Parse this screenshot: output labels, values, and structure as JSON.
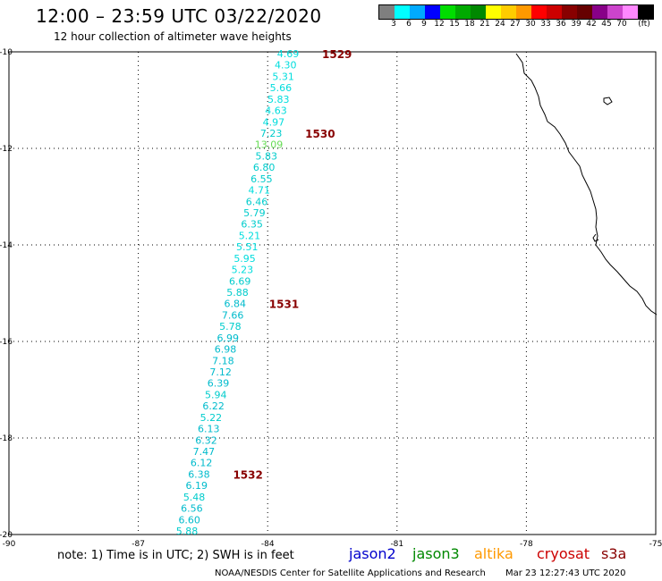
{
  "header": {
    "title": "12:00 – 23:59 UTC 03/22/2020",
    "subtitle": "12 hour collection of altimeter wave heights"
  },
  "colorbar": {
    "colors": [
      "#7f7f7f",
      "#00ffff",
      "#00aaff",
      "#0000ff",
      "#00dd00",
      "#00aa00",
      "#008800",
      "#ffff00",
      "#ffcc00",
      "#ff9900",
      "#ff0000",
      "#cc0000",
      "#880000",
      "#660000",
      "#880088",
      "#cc44cc",
      "#ff88ff",
      "#000000"
    ],
    "labels": [
      "3",
      "6",
      "9",
      "12",
      "15",
      "18",
      "21",
      "24",
      "27",
      "30",
      "33",
      "36",
      "39",
      "42",
      "45",
      "70",
      "(ft)"
    ]
  },
  "map": {
    "lat_ticks": [
      "-10",
      "-12",
      "-14",
      "-16",
      "-18",
      "-20"
    ],
    "lon_ticks": [
      "-90",
      "-87",
      "-84",
      "-81",
      "-78",
      "-75"
    ],
    "track": [
      {
        "value": "4.69",
        "color": "#00dddd"
      },
      {
        "value": "4.30",
        "color": "#00dddd"
      },
      {
        "value": "5.31",
        "color": "#00dddd"
      },
      {
        "value": "5.66",
        "color": "#00dddd"
      },
      {
        "value": "5.83",
        "color": "#00dddd"
      },
      {
        "value": "4.63",
        "color": "#00dddd"
      },
      {
        "value": "4.97",
        "color": "#00dddd"
      },
      {
        "value": "7.23",
        "color": "#00cccc"
      },
      {
        "value": "13.09",
        "color": "#66dd55"
      },
      {
        "value": "5.83",
        "color": "#00cccc"
      },
      {
        "value": "6.80",
        "color": "#00cccc"
      },
      {
        "value": "6.55",
        "color": "#00cccc"
      },
      {
        "value": "4.71",
        "color": "#00dddd"
      },
      {
        "value": "6.46",
        "color": "#00cccc"
      },
      {
        "value": "5.79",
        "color": "#00cccc"
      },
      {
        "value": "6.35",
        "color": "#00cccc"
      },
      {
        "value": "5.21",
        "color": "#00dddd"
      },
      {
        "value": "5.51",
        "color": "#00dddd"
      },
      {
        "value": "5.95",
        "color": "#00dddd"
      },
      {
        "value": "5.23",
        "color": "#00dddd"
      },
      {
        "value": "6.69",
        "color": "#00cccc"
      },
      {
        "value": "5.88",
        "color": "#00cccc"
      },
      {
        "value": "6.84",
        "color": "#00bbcc"
      },
      {
        "value": "7.66",
        "color": "#00bbcc"
      },
      {
        "value": "5.78",
        "color": "#00cccc"
      },
      {
        "value": "6.99",
        "color": "#00bbcc"
      },
      {
        "value": "6.98",
        "color": "#00bbcc"
      },
      {
        "value": "7.18",
        "color": "#00bbcc"
      },
      {
        "value": "7.12",
        "color": "#00bbcc"
      },
      {
        "value": "6.39",
        "color": "#00bbcc"
      },
      {
        "value": "5.94",
        "color": "#00cccc"
      },
      {
        "value": "6.22",
        "color": "#00bbcc"
      },
      {
        "value": "5.22",
        "color": "#00cccc"
      },
      {
        "value": "6.13",
        "color": "#00bbcc"
      },
      {
        "value": "6.32",
        "color": "#00bbcc"
      },
      {
        "value": "7.47",
        "color": "#00bbcc"
      },
      {
        "value": "6.12",
        "color": "#00bbcc"
      },
      {
        "value": "6.38",
        "color": "#00bbcc"
      },
      {
        "value": "6.19",
        "color": "#00bbcc"
      },
      {
        "value": "5.48",
        "color": "#00cccc"
      },
      {
        "value": "6.56",
        "color": "#00bbcc"
      },
      {
        "value": "6.60",
        "color": "#00bbcc"
      },
      {
        "value": "5.88",
        "color": "#00cccc"
      }
    ],
    "time_labels": [
      "1529",
      "1530",
      "1531",
      "1532"
    ],
    "time_color": "#880000",
    "coast_color": "#000000"
  },
  "footer": {
    "note": "note:  1) Time is in UTC; 2) SWH is in feet",
    "satellites": [
      {
        "name": "jason2",
        "color": "#0000cc"
      },
      {
        "name": "jason3",
        "color": "#008800"
      },
      {
        "name": "altika",
        "color": "#ff9900"
      },
      {
        "name": "cryosat",
        "color": "#cc0000"
      },
      {
        "name": "s3a",
        "color": "#880000"
      }
    ],
    "credit": "NOAA/NESDIS Center for Satellite Applications and Research",
    "timestamp": "Mar 23 12:27:43 UTC 2020"
  }
}
